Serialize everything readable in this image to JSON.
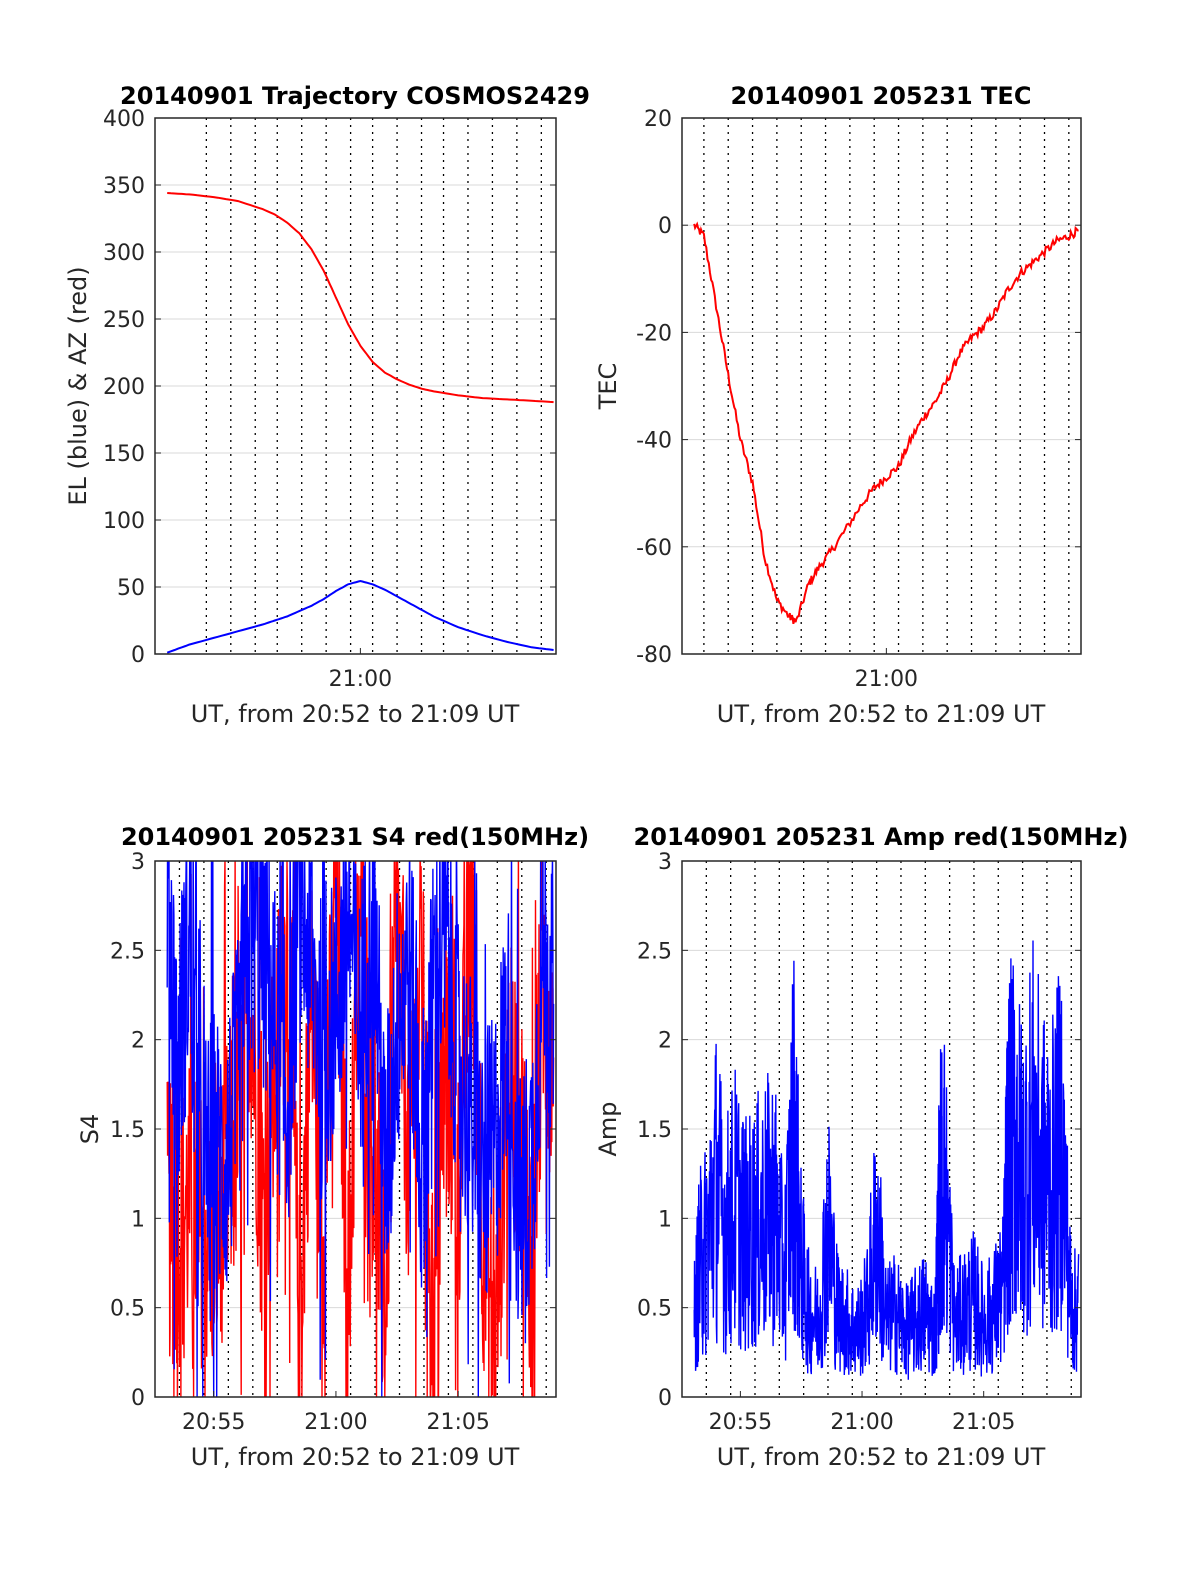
{
  "colors": {
    "el": "#0000ff",
    "az": "#ff0000",
    "tec": "#ff0000",
    "s4_red": "#ff0000",
    "s4_blue": "#0000ff",
    "amp": "#0000ff",
    "grid": "#d9d9d9",
    "vlines": "#000000"
  },
  "chart_data": [
    {
      "id": "trajectory",
      "type": "line",
      "title": "20140901 Trajectory COSMOS2429",
      "xlabel": "UT, from 20:52 to 21:09 UT",
      "ylabel": "EL (blue) & AZ (red)",
      "x_unit": "minutes after 20:00 UT",
      "xlim": [
        52.6,
        69.0
      ],
      "ylim": [
        0,
        400
      ],
      "yticks": [
        0,
        50,
        100,
        150,
        200,
        250,
        300,
        350,
        400
      ],
      "xticks": [
        {
          "x": 61.0,
          "label": "21:00"
        }
      ],
      "grid": true,
      "dotted_vlines": [
        54.7,
        55.7,
        56.7,
        57.6,
        58.6,
        59.6,
        60.6,
        61.5,
        62.5,
        63.5,
        64.4,
        65.4,
        66.4,
        67.4,
        68.4
      ],
      "series": [
        {
          "name": "AZ",
          "color": "red",
          "x": [
            53.1,
            54.0,
            55.0,
            56.0,
            57.0,
            57.5,
            58.0,
            58.5,
            59.0,
            59.5,
            60.0,
            60.5,
            61.0,
            61.5,
            62.0,
            62.5,
            63.0,
            63.5,
            64.0,
            65.0,
            66.0,
            67.0,
            68.0,
            68.9
          ],
          "values": [
            344,
            343,
            341,
            338,
            332,
            328,
            322,
            314,
            302,
            286,
            266,
            246,
            230,
            218,
            210,
            205,
            201,
            198,
            196,
            193,
            191,
            190,
            189,
            188
          ]
        },
        {
          "name": "EL",
          "color": "blue",
          "x": [
            53.1,
            54.0,
            55.0,
            56.0,
            57.0,
            57.5,
            58.0,
            58.5,
            59.0,
            59.5,
            60.0,
            60.5,
            61.0,
            61.5,
            62.0,
            62.5,
            63.0,
            63.5,
            64.0,
            65.0,
            66.0,
            67.0,
            68.0,
            68.9
          ],
          "values": [
            1,
            7,
            12,
            17,
            22,
            25,
            28,
            32,
            36,
            41,
            47,
            52,
            54.5,
            52,
            48,
            43,
            38,
            33,
            28,
            20,
            14,
            9,
            5,
            3
          ]
        }
      ]
    },
    {
      "id": "tec",
      "type": "line",
      "title": "20140901 205231 TEC",
      "xlabel": "UT, from 20:52 to 21:09 UT",
      "ylabel": "TEC",
      "x_unit": "minutes after 20:00 UT",
      "xlim": [
        52.6,
        69.0
      ],
      "ylim": [
        -80,
        20
      ],
      "yticks": [
        -80,
        -60,
        -40,
        -20,
        0,
        20
      ],
      "xticks": [
        {
          "x": 61.0,
          "label": "21:00"
        }
      ],
      "grid": true,
      "dotted_vlines": [
        53.5,
        54.5,
        55.5,
        56.5,
        57.5,
        58.5,
        59.5,
        60.5,
        61.5,
        62.5,
        63.5,
        64.5,
        65.5,
        66.5,
        67.5,
        68.5
      ],
      "series": [
        {
          "name": "TEC",
          "color": "red",
          "x": [
            53.1,
            53.5,
            54.0,
            54.5,
            55.0,
            55.5,
            56.0,
            56.5,
            57.0,
            57.3,
            57.8,
            58.2,
            58.7,
            59.3,
            60.0,
            60.5,
            61.0,
            61.5,
            62.0,
            62.5,
            63.0,
            63.5,
            64.0,
            64.5,
            65.0,
            65.5,
            66.0,
            66.5,
            67.0,
            67.5,
            68.0,
            68.5,
            68.9
          ],
          "values": [
            0,
            -2,
            -15,
            -28,
            -40,
            -48,
            -62,
            -70,
            -73,
            -74,
            -67,
            -64,
            -61,
            -57,
            -52,
            -49,
            -47,
            -45,
            -40,
            -36,
            -33,
            -29,
            -24,
            -21,
            -19,
            -16,
            -12,
            -9,
            -7,
            -5,
            -3,
            -2,
            -1
          ]
        }
      ]
    },
    {
      "id": "s4",
      "type": "line",
      "title": "20140901 205231 S4 red(150MHz)",
      "xlabel": "UT, from 20:52 to 21:09 UT",
      "ylabel": "S4",
      "x_unit": "minutes after 20:00 UT",
      "xlim": [
        52.6,
        69.0
      ],
      "ylim": [
        0,
        3
      ],
      "yticks": [
        0,
        0.5,
        1,
        1.5,
        2,
        2.5,
        3
      ],
      "xticks": [
        {
          "x": 55.0,
          "label": "20:55"
        },
        {
          "x": 60.0,
          "label": "21:00"
        },
        {
          "x": 65.0,
          "label": "21:05"
        }
      ],
      "grid": true,
      "dotted_vlines": [
        53.6,
        54.6,
        55.6,
        56.6,
        57.6,
        58.6,
        59.6,
        60.6,
        61.6,
        62.6,
        63.6,
        64.6,
        65.6,
        66.6,
        67.6,
        68.6
      ],
      "series": [
        {
          "name": "red",
          "color": "red",
          "x": [
            53.1,
            53.5,
            54.0,
            54.5,
            55.0,
            55.5,
            56.0,
            56.5,
            57.0,
            57.5,
            58.0,
            58.5,
            59.0,
            59.5,
            60.0,
            60.5,
            61.0,
            61.5,
            62.0,
            62.5,
            63.0,
            63.5,
            64.0,
            64.5,
            65.0,
            65.5,
            66.0,
            66.5,
            67.0,
            67.5,
            68.0,
            68.5,
            68.9
          ],
          "values": [
            1.0,
            0.9,
            1.1,
            0.95,
            0.85,
            1.2,
            1.5,
            2.3,
            1.0,
            1.8,
            2.6,
            0.4,
            2.2,
            1.0,
            2.9,
            0.6,
            2.8,
            1.4,
            0.5,
            2.7,
            1.2,
            2.4,
            0.3,
            2.0,
            1.1,
            2.8,
            1.0,
            0.2,
            1.8,
            1.6,
            0.8,
            2.3,
            1.9
          ]
        },
        {
          "name": "blue",
          "color": "blue",
          "x": [
            53.1,
            53.5,
            54.0,
            54.5,
            55.0,
            55.5,
            56.0,
            56.5,
            57.0,
            57.5,
            58.0,
            58.5,
            59.0,
            59.5,
            60.0,
            60.5,
            61.0,
            61.5,
            62.0,
            62.5,
            63.0,
            63.5,
            64.0,
            64.5,
            65.0,
            65.5,
            66.0,
            66.5,
            67.0,
            67.5,
            68.0,
            68.5,
            68.9
          ],
          "values": [
            3.0,
            1.8,
            2.6,
            1.2,
            1.4,
            1.3,
            1.8,
            2.6,
            2.5,
            2.1,
            1.6,
            2.8,
            2.4,
            1.9,
            2.2,
            2.7,
            2.0,
            2.9,
            1.2,
            2.1,
            2.5,
            1.3,
            2.3,
            2.6,
            1.9,
            1.6,
            1.2,
            1.4,
            2.1,
            1.0,
            1.3,
            2.5,
            2.2
          ]
        }
      ]
    },
    {
      "id": "amp",
      "type": "line",
      "title": "20140901 205231 Amp red(150MHz)",
      "xlabel": "UT, from 20:52 to 21:09 UT",
      "ylabel": "Amp",
      "x_unit": "minutes after 20:00 UT",
      "xlim": [
        52.6,
        69.0
      ],
      "ylim": [
        0,
        3
      ],
      "yticks": [
        0,
        0.5,
        1,
        1.5,
        2,
        2.5,
        3
      ],
      "xticks": [
        {
          "x": 55.0,
          "label": "20:55"
        },
        {
          "x": 60.0,
          "label": "21:00"
        },
        {
          "x": 65.0,
          "label": "21:05"
        }
      ],
      "grid": true,
      "dotted_vlines": [
        53.6,
        54.6,
        55.6,
        56.6,
        57.6,
        58.6,
        59.6,
        60.6,
        61.6,
        62.6,
        63.6,
        64.6,
        65.6,
        66.6,
        67.6,
        68.6
      ],
      "series": [
        {
          "name": "Amp",
          "color": "blue",
          "x": [
            53.1,
            53.3,
            53.6,
            54.0,
            54.4,
            54.8,
            55.2,
            55.6,
            56.0,
            56.4,
            56.8,
            57.2,
            57.5,
            57.8,
            58.2,
            58.6,
            59.0,
            59.4,
            59.8,
            60.2,
            60.6,
            61.0,
            61.4,
            61.8,
            62.2,
            62.6,
            63.0,
            63.2,
            63.4,
            63.8,
            64.2,
            64.6,
            65.0,
            65.4,
            65.8,
            66.0,
            66.3,
            66.6,
            67.0,
            67.4,
            67.8,
            68.2,
            68.6,
            68.9
          ],
          "values": [
            0.7,
            1.2,
            1.4,
            2.0,
            1.5,
            1.8,
            1.5,
            1.6,
            1.7,
            1.8,
            1.1,
            2.5,
            1.2,
            0.8,
            0.7,
            1.6,
            0.8,
            0.7,
            0.6,
            0.8,
            1.6,
            0.7,
            0.8,
            0.6,
            0.7,
            0.8,
            0.6,
            1.9,
            2.0,
            0.7,
            0.8,
            0.9,
            0.7,
            0.8,
            1.0,
            2.3,
            2.4,
            2.0,
            2.5,
            2.1,
            2.0,
            2.4,
            0.8,
            0.8
          ]
        }
      ]
    }
  ]
}
